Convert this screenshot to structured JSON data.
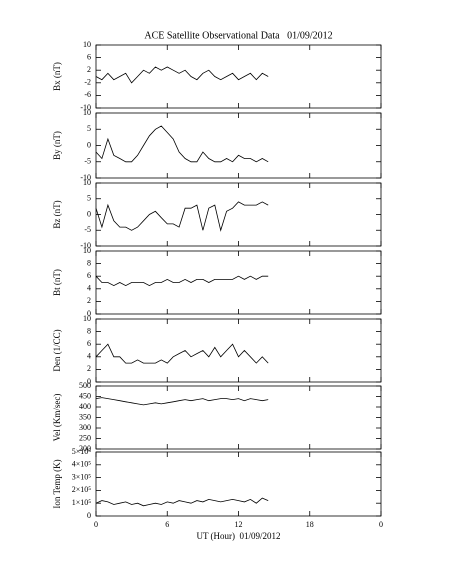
{
  "chart_data": [
    {
      "type": "line",
      "title": "ACE Satellite Observational Data   01/09/2012",
      "ylabel": "Bx (nT)",
      "color": "#000000",
      "x": [
        0,
        0.5,
        1,
        1.5,
        2,
        2.5,
        3,
        3.5,
        4,
        4.5,
        5,
        5.5,
        6,
        6.5,
        7,
        7.5,
        8,
        8.5,
        9,
        9.5,
        10,
        10.5,
        11,
        11.5,
        12,
        12.5,
        13,
        13.5,
        14,
        14.5
      ],
      "values": [
        0,
        -1,
        1,
        -1,
        0,
        1,
        -2,
        0,
        2,
        1,
        3,
        2,
        3,
        2,
        1,
        2,
        0,
        -1,
        1,
        2,
        0,
        -1,
        0,
        1,
        -1,
        0,
        1,
        -1,
        1,
        0
      ],
      "xlim": [
        0,
        24
      ],
      "xticks": [
        0,
        6,
        12,
        18,
        {
          "value": 24,
          "label": "0"
        }
      ],
      "ylim": [
        -10,
        10
      ],
      "yticks": [
        -10,
        -6,
        -2,
        2,
        6,
        10
      ]
    },
    {
      "type": "line",
      "ylabel": "By (nT)",
      "color": "#000000",
      "x": [
        0,
        0.5,
        1,
        1.5,
        2,
        2.5,
        3,
        3.5,
        4,
        4.5,
        5,
        5.5,
        6,
        6.5,
        7,
        7.5,
        8,
        8.5,
        9,
        9.5,
        10,
        10.5,
        11,
        11.5,
        12,
        12.5,
        13,
        13.5,
        14,
        14.5
      ],
      "values": [
        -2,
        -4,
        2,
        -3,
        -4,
        -5,
        -5,
        -3,
        0,
        3,
        5,
        6,
        4,
        2,
        -2,
        -4,
        -5,
        -5,
        -2,
        -4,
        -5,
        -5,
        -4,
        -5,
        -3,
        -4,
        -4,
        -5,
        -4,
        -5
      ],
      "xlim": [
        0,
        24
      ],
      "xticks": [
        0,
        6,
        12,
        18,
        {
          "value": 24,
          "label": "0"
        }
      ],
      "ylim": [
        -10,
        10
      ],
      "yticks": [
        -10,
        -5,
        0,
        5,
        10
      ]
    },
    {
      "type": "line",
      "ylabel": "Bz (nT)",
      "color": "#000000",
      "x": [
        0,
        0.5,
        1,
        1.5,
        2,
        2.5,
        3,
        3.5,
        4,
        4.5,
        5,
        5.5,
        6,
        6.5,
        7,
        7.5,
        8,
        8.5,
        9,
        9.5,
        10,
        10.5,
        11,
        11.5,
        12,
        12.5,
        13,
        13.5,
        14,
        14.5
      ],
      "values": [
        2,
        -4,
        3,
        -2,
        -4,
        -4,
        -5,
        -4,
        -2,
        0,
        1,
        -1,
        -3,
        -3,
        -4,
        2,
        2,
        3,
        -5,
        2,
        3,
        -5,
        1,
        2,
        4,
        3,
        3,
        3,
        4,
        3
      ],
      "xlim": [
        0,
        24
      ],
      "xticks": [
        0,
        6,
        12,
        18,
        {
          "value": 24,
          "label": "0"
        }
      ],
      "ylim": [
        -10,
        10
      ],
      "yticks": [
        -10,
        -5,
        0,
        5,
        10
      ]
    },
    {
      "type": "line",
      "ylabel": "Bt (nT)",
      "color": "#000000",
      "x": [
        0,
        0.5,
        1,
        1.5,
        2,
        2.5,
        3,
        3.5,
        4,
        4.5,
        5,
        5.5,
        6,
        6.5,
        7,
        7.5,
        8,
        8.5,
        9,
        9.5,
        10,
        10.5,
        11,
        11.5,
        12,
        12.5,
        13,
        13.5,
        14,
        14.5
      ],
      "values": [
        6,
        5,
        5,
        4.5,
        5,
        4.5,
        5,
        5,
        5,
        4.5,
        5,
        5,
        5.5,
        5,
        5,
        5.5,
        5,
        5.5,
        5.5,
        5,
        5.5,
        5.5,
        5.5,
        5.5,
        6,
        5.5,
        6,
        5.5,
        6,
        6
      ],
      "xlim": [
        0,
        24
      ],
      "xticks": [
        0,
        6,
        12,
        18,
        {
          "value": 24,
          "label": "0"
        }
      ],
      "ylim": [
        0,
        10
      ],
      "yticks": [
        0,
        2,
        4,
        6,
        8,
        10
      ]
    },
    {
      "type": "line",
      "ylabel": "Den (1/CC)",
      "color": "#000000",
      "x": [
        0,
        0.5,
        1,
        1.5,
        2,
        2.5,
        3,
        3.5,
        4,
        4.5,
        5,
        5.5,
        6,
        6.5,
        7,
        7.5,
        8,
        8.5,
        9,
        9.5,
        10,
        10.5,
        11,
        11.5,
        12,
        12.5,
        13,
        13.5,
        14,
        14.5
      ],
      "values": [
        4,
        5,
        6,
        4,
        4,
        3,
        3,
        3.5,
        3,
        3,
        3,
        3.5,
        3,
        4,
        4.5,
        5,
        4,
        4.5,
        5,
        4,
        5.5,
        4,
        5,
        6,
        4,
        5,
        4,
        3,
        4,
        3
      ],
      "xlim": [
        0,
        24
      ],
      "xticks": [
        0,
        6,
        12,
        18,
        {
          "value": 24,
          "label": "0"
        }
      ],
      "ylim": [
        0,
        10
      ],
      "yticks": [
        0,
        2,
        4,
        6,
        8,
        10
      ]
    },
    {
      "type": "line",
      "ylabel": "Vel (Km/sec)",
      "color": "#000000",
      "x": [
        0,
        0.5,
        1,
        1.5,
        2,
        2.5,
        3,
        3.5,
        4,
        4.5,
        5,
        5.5,
        6,
        6.5,
        7,
        7.5,
        8,
        8.5,
        9,
        9.5,
        10,
        10.5,
        11,
        11.5,
        12,
        12.5,
        13,
        13.5,
        14,
        14.5
      ],
      "values": [
        440,
        445,
        440,
        435,
        430,
        425,
        420,
        415,
        410,
        415,
        420,
        415,
        420,
        425,
        430,
        435,
        430,
        435,
        440,
        430,
        435,
        440,
        440,
        435,
        440,
        430,
        440,
        435,
        430,
        435
      ],
      "xlim": [
        0,
        24
      ],
      "xticks": [
        0,
        6,
        12,
        18,
        {
          "value": 24,
          "label": "0"
        }
      ],
      "ylim": [
        200,
        500
      ],
      "yticks": [
        200,
        250,
        300,
        350,
        400,
        450,
        500
      ]
    },
    {
      "type": "line",
      "ylabel": "Ion Temp (K)",
      "xlabel": "UT (Hour)  01/09/2012",
      "color": "#000000",
      "x": [
        0,
        0.5,
        1,
        1.5,
        2,
        2.5,
        3,
        3.5,
        4,
        4.5,
        5,
        5.5,
        6,
        6.5,
        7,
        7.5,
        8,
        8.5,
        9,
        9.5,
        10,
        10.5,
        11,
        11.5,
        12,
        12.5,
        13,
        13.5,
        14,
        14.5
      ],
      "values": [
        100000,
        120000,
        110000,
        90000,
        100000,
        110000,
        90000,
        100000,
        80000,
        90000,
        100000,
        90000,
        110000,
        100000,
        120000,
        110000,
        100000,
        120000,
        110000,
        130000,
        120000,
        110000,
        120000,
        130000,
        120000,
        110000,
        130000,
        100000,
        140000,
        120000
      ],
      "xlim": [
        0,
        24
      ],
      "xticks": [
        0,
        6,
        12,
        18,
        {
          "value": 24,
          "label": "0"
        }
      ],
      "ylim": [
        0,
        500000
      ],
      "yticks": [
        0,
        {
          "value": 100000,
          "label": "1×10⁵"
        },
        {
          "value": 200000,
          "label": "2×10⁵"
        },
        {
          "value": 300000,
          "label": "3×10⁵"
        },
        {
          "value": 400000,
          "label": "4×10⁵"
        },
        {
          "value": 500000,
          "label": "5×10⁵"
        }
      ]
    }
  ]
}
